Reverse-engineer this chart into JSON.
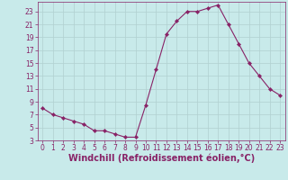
{
  "x": [
    0,
    1,
    2,
    3,
    4,
    5,
    6,
    7,
    8,
    9,
    10,
    11,
    12,
    13,
    14,
    15,
    16,
    17,
    18,
    19,
    20,
    21,
    22,
    23
  ],
  "y": [
    8,
    7,
    6.5,
    6,
    5.5,
    4.5,
    4.5,
    4,
    3.5,
    3.5,
    8.5,
    14,
    19.5,
    21.5,
    23,
    23,
    23.5,
    24,
    21,
    18,
    15,
    13,
    11,
    10
  ],
  "line_color": "#882266",
  "marker": "D",
  "marker_size": 2.2,
  "bg_color": "#c8eaea",
  "grid_color": "#b0d0d0",
  "xlabel": "Windchill (Refroidissement éolien,°C)",
  "xlabel_color": "#882266",
  "ylim": [
    3,
    24.5
  ],
  "xlim": [
    -0.5,
    23.5
  ],
  "yticks": [
    3,
    5,
    7,
    9,
    11,
    13,
    15,
    17,
    19,
    21,
    23
  ],
  "xticks": [
    0,
    1,
    2,
    3,
    4,
    5,
    6,
    7,
    8,
    9,
    10,
    11,
    12,
    13,
    14,
    15,
    16,
    17,
    18,
    19,
    20,
    21,
    22,
    23
  ],
  "tick_color": "#882266",
  "tick_label_fontsize": 5.5,
  "xlabel_fontsize": 7.0
}
